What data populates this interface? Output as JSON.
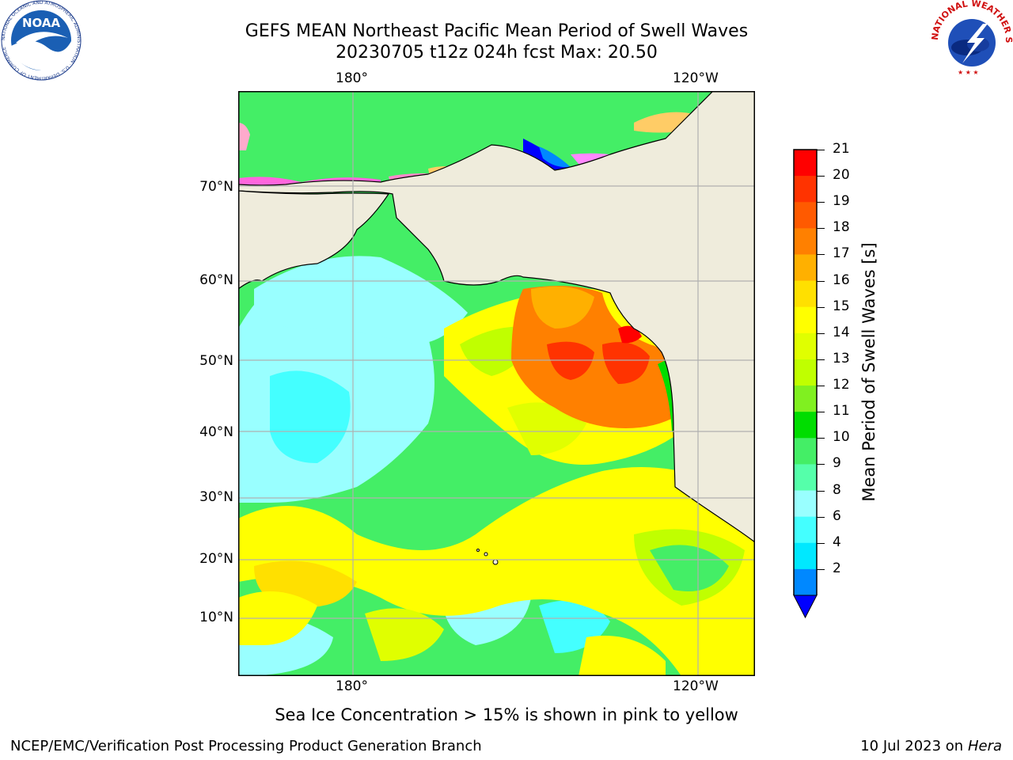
{
  "title": {
    "line1": "GEFS MEAN Northeast Pacific Mean Period of Swell Waves",
    "line2": "20230705 t12z 024h fcst   Max: 20.50"
  },
  "map": {
    "lon_labels_top": [
      "180°",
      "120°W"
    ],
    "lon_labels_bottom": [
      "180°",
      "120°W"
    ],
    "lat_labels": [
      "70°N",
      "60°N",
      "50°N",
      "40°N",
      "30°N",
      "20°N",
      "10°N"
    ]
  },
  "colorbar": {
    "label": "Mean Period of Swell Waves [s]",
    "ticks": [
      "21",
      "20",
      "19",
      "18",
      "17",
      "16",
      "15",
      "14",
      "13",
      "12",
      "11",
      "10",
      "9",
      "8",
      "6",
      "4",
      "2"
    ],
    "colors": [
      "#ff0000",
      "#ff3300",
      "#ff5a00",
      "#ff8000",
      "#ffb000",
      "#ffe000",
      "#ffff00",
      "#e0ff00",
      "#c0ff00",
      "#80f020",
      "#00dd00",
      "#44ee66",
      "#55ffaa",
      "#99ffff",
      "#44ffff",
      "#00e8ff",
      "#0088ff"
    ],
    "under_color": "#0000ff"
  },
  "note": "Sea Ice Concentration > 15% is shown in pink to yellow",
  "footer": {
    "left": "NCEP/EMC/Verification Post Processing Product Generation Branch",
    "right_prefix": "10 Jul 2023 on ",
    "right_host": "Hera"
  },
  "logos": {
    "left_text": "NOAA",
    "left_ring": "NATIONAL OCEANIC AND ATMOSPHERIC ADMINISTRATION · U.S. DEPARTMENT OF COMMERCE",
    "right_ring": "NATIONAL WEATHER SERVICE"
  }
}
